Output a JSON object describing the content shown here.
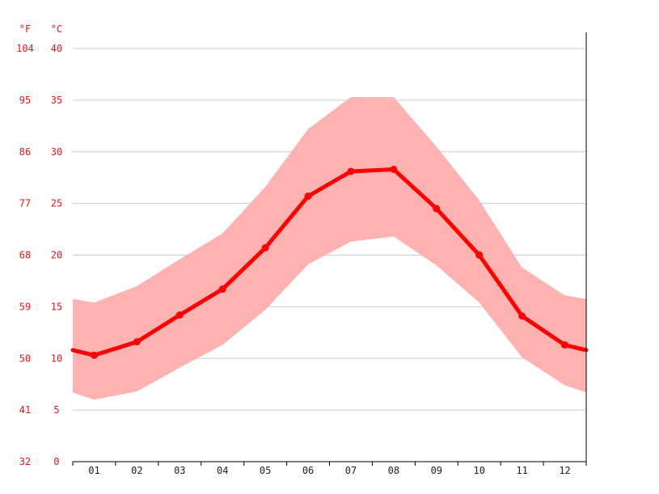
{
  "chart_data": {
    "type": "line",
    "title": "",
    "xlabel": "",
    "ylabel": "",
    "units": {
      "fahrenheit": "°F",
      "celsius": "°C"
    },
    "categories": [
      "01",
      "02",
      "03",
      "04",
      "05",
      "06",
      "07",
      "08",
      "09",
      "10",
      "11",
      "12"
    ],
    "ylim": [
      0,
      40
    ],
    "y_ticks_celsius": [
      "0",
      "5",
      "10",
      "15",
      "20",
      "25",
      "30",
      "35",
      "40"
    ],
    "y_ticks_fahrenheit": [
      "32",
      "41",
      "50",
      "59",
      "68",
      "77",
      "86",
      "95",
      "104"
    ],
    "grid": true,
    "series": [
      {
        "values": [
          10.3,
          11.6,
          14.2,
          16.7,
          20.7,
          25.7,
          28.1,
          28.3,
          24.5,
          20.0,
          14.1,
          11.3
        ]
      }
    ],
    "band": {
      "upper": [
        15.4,
        17.0,
        19.6,
        22.1,
        26.6,
        32.2,
        35.3,
        35.3,
        30.5,
        25.3,
        18.8,
        16.1
      ],
      "lower": [
        6.0,
        6.8,
        9.1,
        11.3,
        14.7,
        19.1,
        21.3,
        21.8,
        19.0,
        15.4,
        10.1,
        7.4
      ]
    },
    "colors": {
      "line": "#ff0000",
      "band": "#ffb2b2",
      "ticks": "#e8141b"
    }
  }
}
